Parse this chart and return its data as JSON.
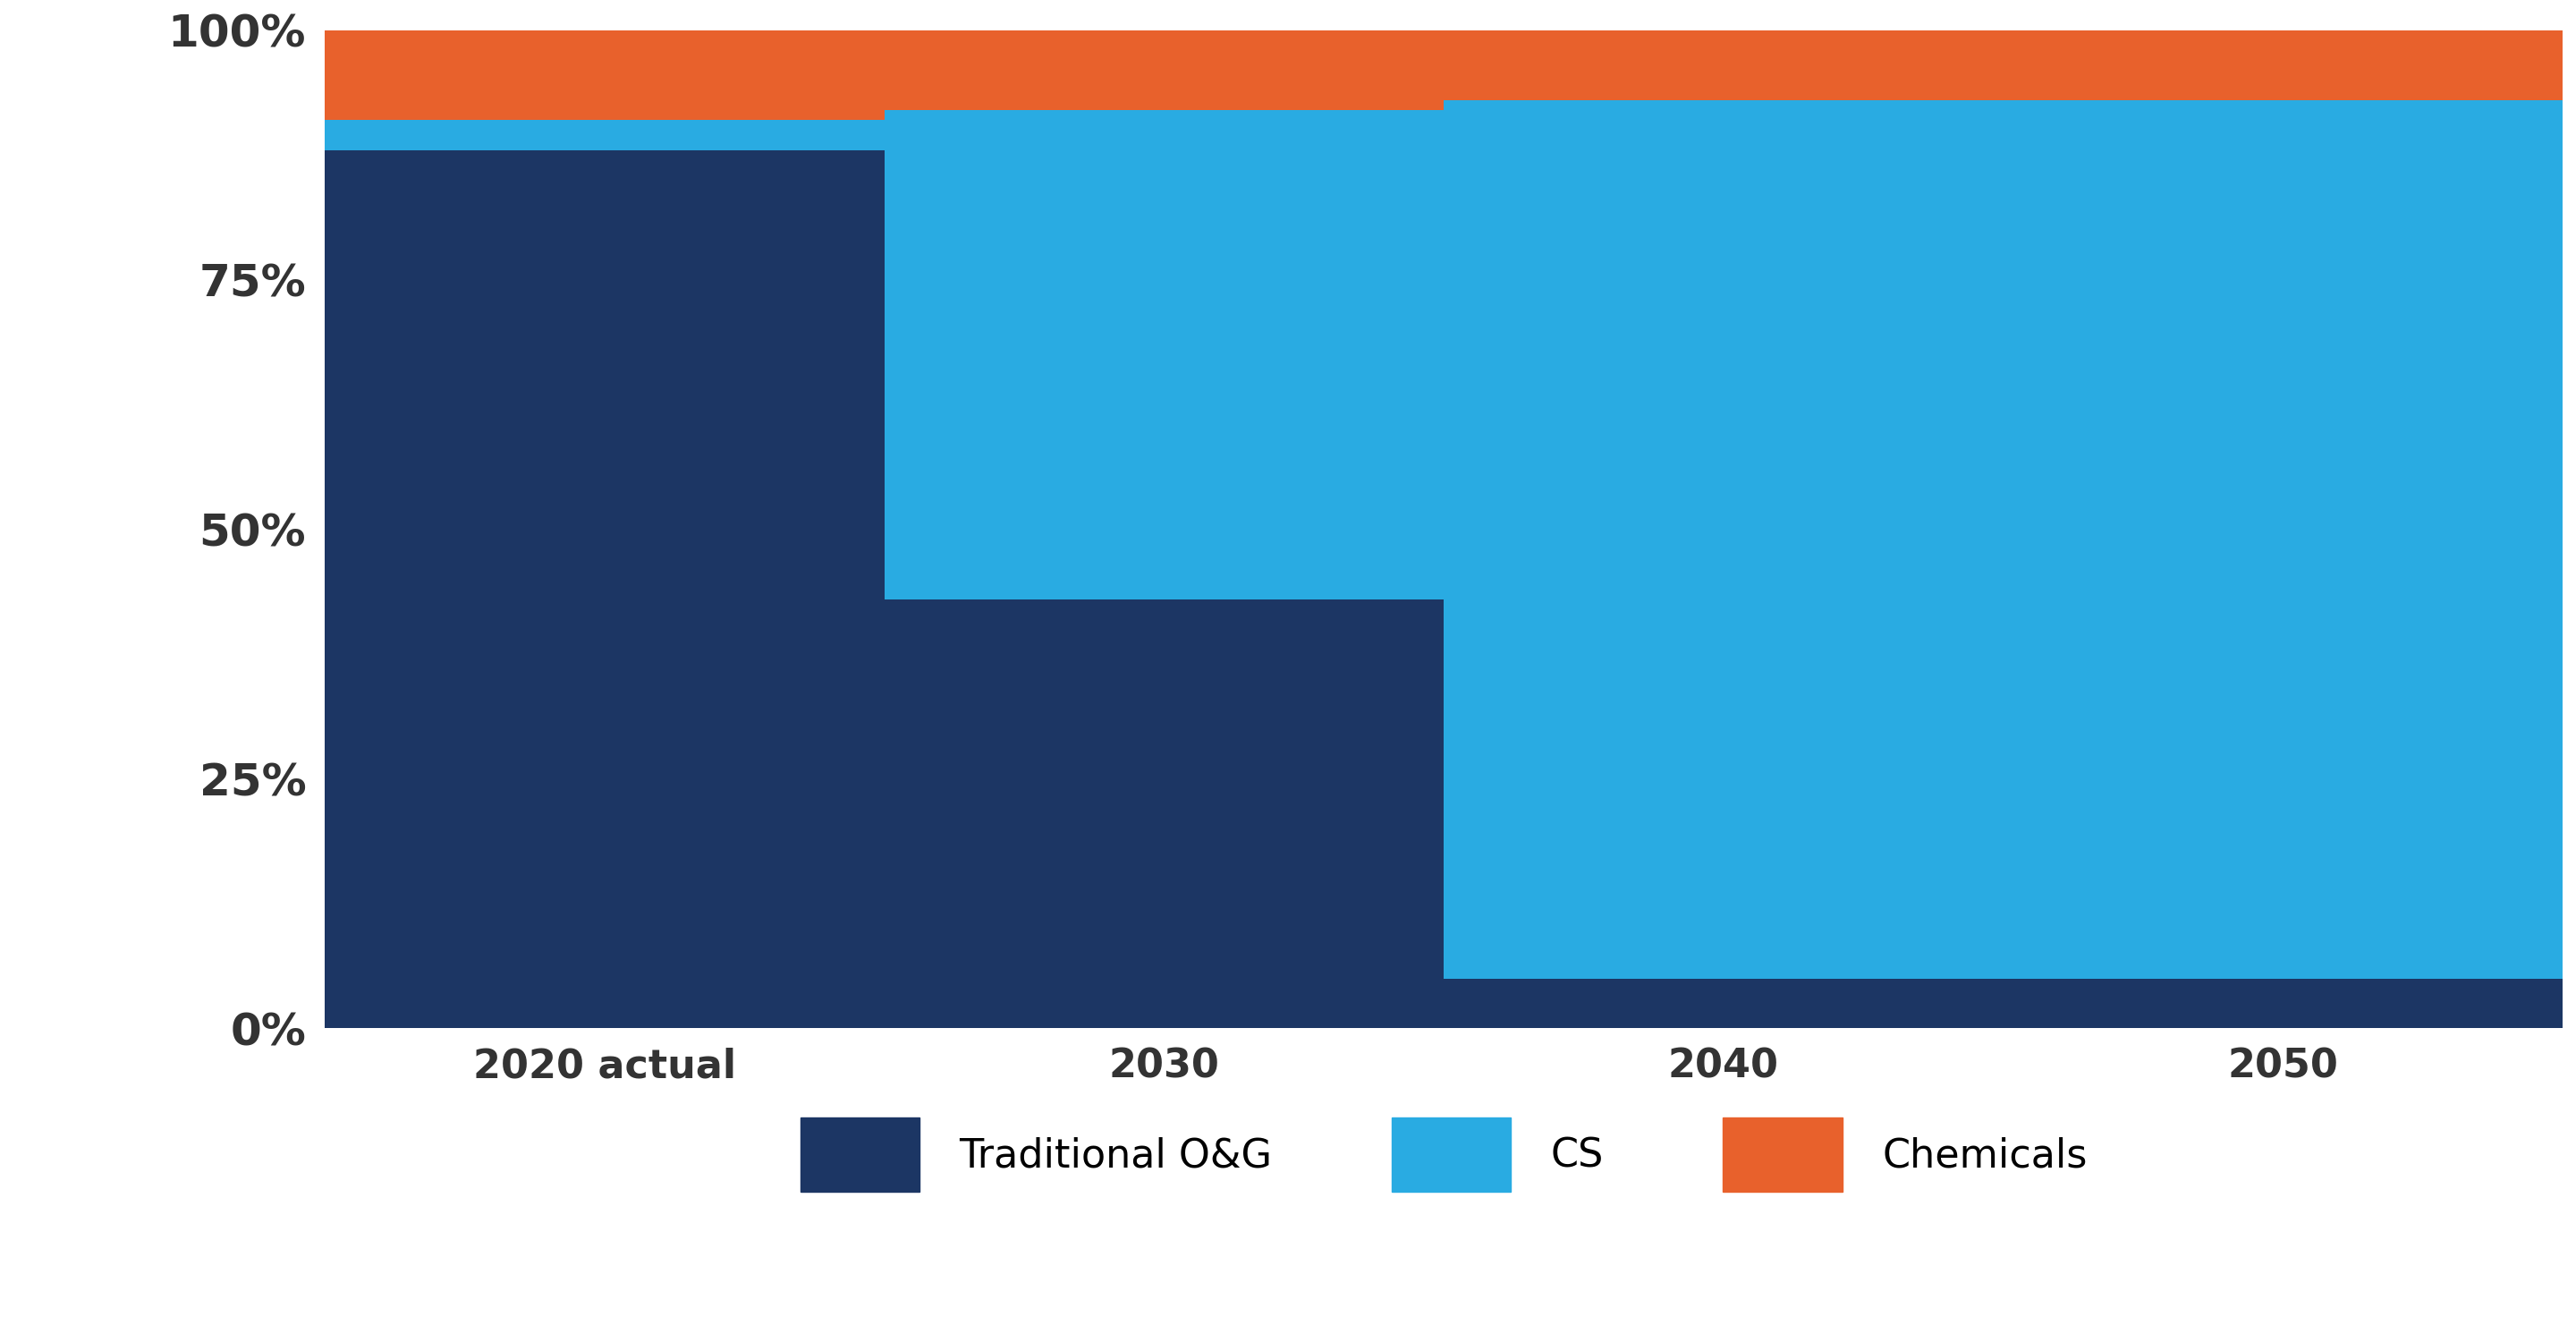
{
  "categories": [
    "2020 actual",
    "2030",
    "2040",
    "2050"
  ],
  "x_positions": [
    0,
    1,
    2,
    3
  ],
  "traditional_og": [
    88,
    43,
    5,
    5
  ],
  "clean_energy": [
    3,
    49,
    88,
    88
  ],
  "chemicals": [
    9,
    8,
    7,
    7
  ],
  "colors": {
    "traditional_og": "#1C3664",
    "clean_energy": "#29ABE2",
    "chemicals": "#E8612C"
  },
  "ylim": [
    0,
    100
  ],
  "yticks": [
    0,
    25,
    50,
    75,
    100
  ],
  "ytick_labels": [
    "0%",
    "25%",
    "50%",
    "75%",
    "100%"
  ],
  "legend_labels": [
    "Traditional O&G",
    "CS",
    "Chemicals"
  ],
  "background_color": "#FFFFFF",
  "plot_bg": "#F2F2F2",
  "bar_width": 1.0
}
